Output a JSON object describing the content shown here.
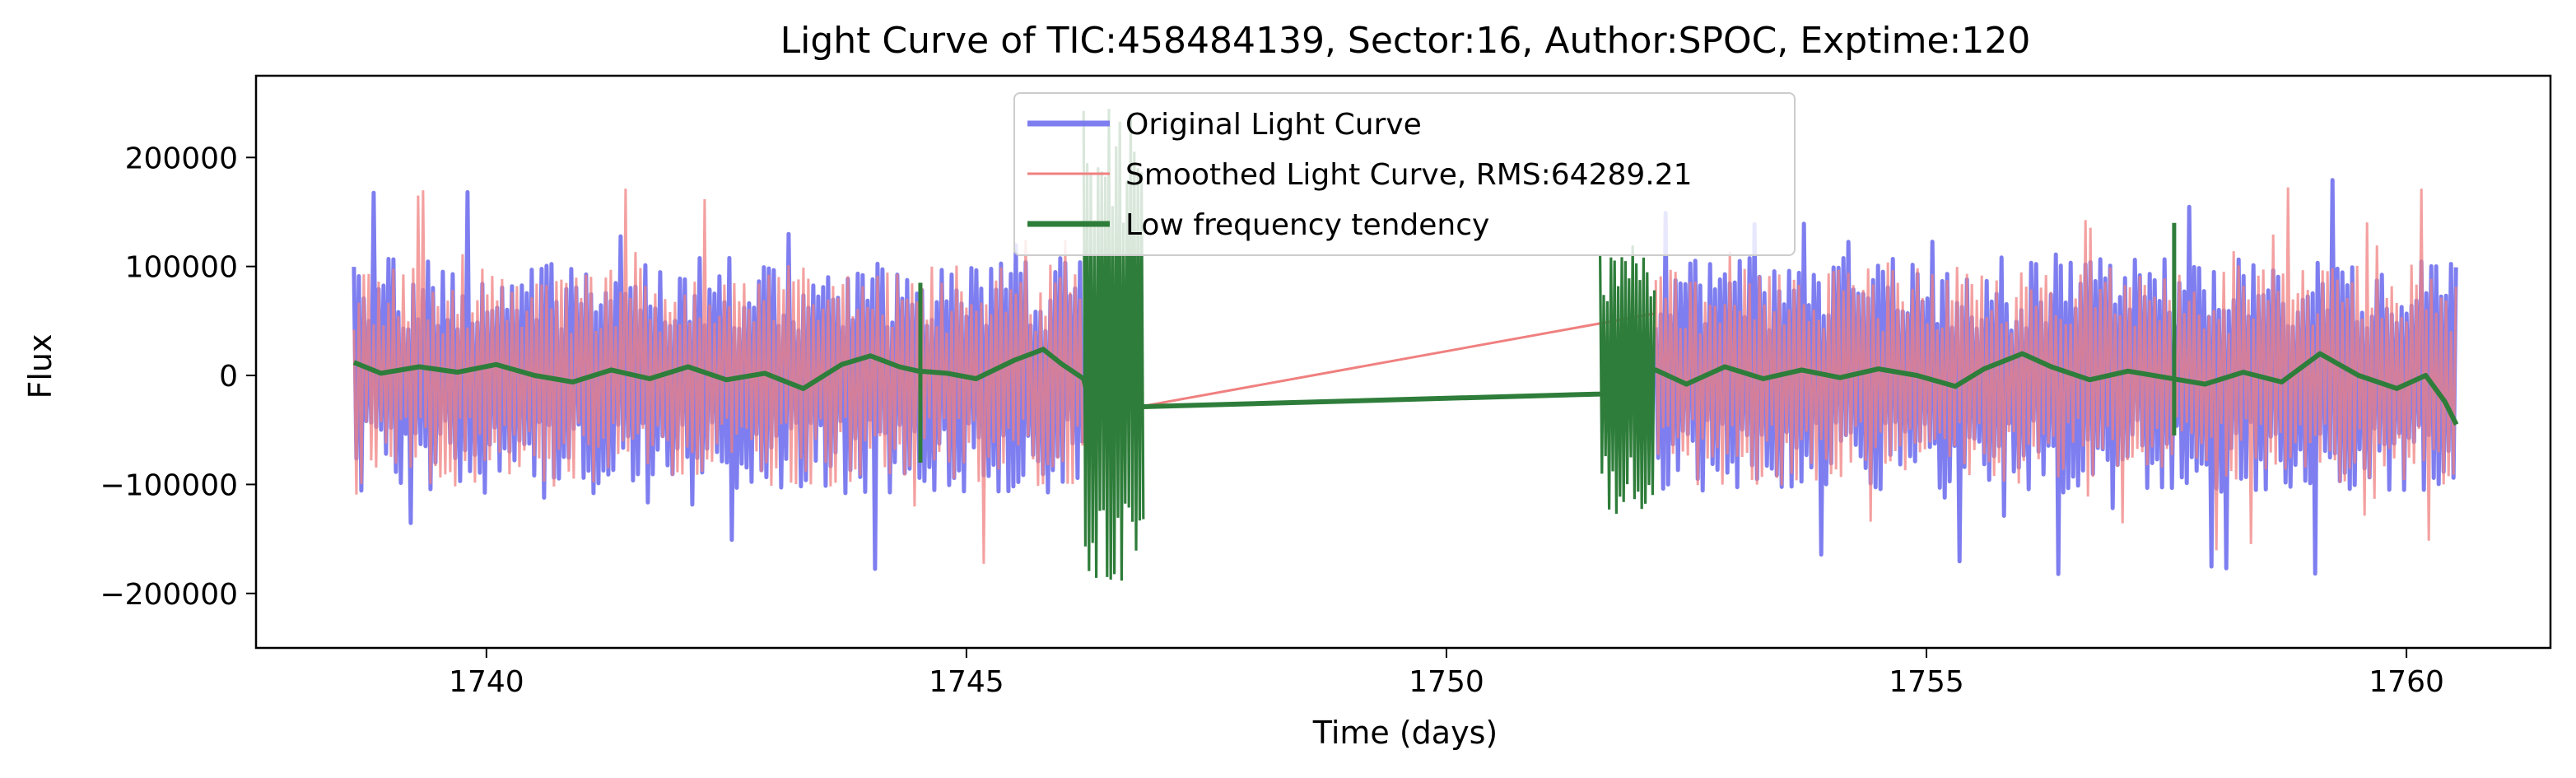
{
  "chart_data": {
    "type": "line",
    "title": "Light Curve of TIC:458484139, Sector:16, Author:SPOC, Exptime:120",
    "xlabel": "Time (days)",
    "ylabel": "Flux",
    "xlim": [
      1737.6,
      1761.5
    ],
    "ylim": [
      -250000,
      275000
    ],
    "xticks": [
      1740,
      1745,
      1750,
      1755,
      1760
    ],
    "xtick_labels": [
      "1740",
      "1745",
      "1750",
      "1755",
      "1760"
    ],
    "yticks": [
      -200000,
      -100000,
      0,
      100000,
      200000
    ],
    "ytick_labels": [
      "−200000",
      "−100000",
      "0",
      "100000",
      "200000"
    ],
    "grid": false,
    "legend_position": "top-center",
    "segments": [
      [
        1738.62,
        1746.22
      ],
      [
        1752.18,
        1760.52
      ]
    ],
    "gap": [
      1746.22,
      1752.18
    ],
    "series": [
      {
        "name": "Original Light Curve",
        "color": "#7070ee",
        "kind": "oscillation",
        "amplitude": 90000,
        "peaks_max": 252000,
        "peaks_min": -228000
      },
      {
        "name": "Smoothed Light Curve, RMS:64289.21",
        "color": "#f08080",
        "kind": "oscillation",
        "amplitude": 85000,
        "bridge": [
          [
            1746.22,
            -38000
          ],
          [
            1752.18,
            57000
          ]
        ]
      },
      {
        "name": "Low frequency tendency",
        "color": "#2e7d3a",
        "kind": "trend",
        "points": [
          [
            1738.62,
            12000
          ],
          [
            1738.9,
            2000
          ],
          [
            1739.3,
            8000
          ],
          [
            1739.7,
            3000
          ],
          [
            1740.1,
            10000
          ],
          [
            1740.5,
            0
          ],
          [
            1740.9,
            -6000
          ],
          [
            1741.3,
            5000
          ],
          [
            1741.7,
            -3000
          ],
          [
            1742.1,
            8000
          ],
          [
            1742.5,
            -4000
          ],
          [
            1742.9,
            2000
          ],
          [
            1743.3,
            -12000
          ],
          [
            1743.7,
            10000
          ],
          [
            1744.0,
            18000
          ],
          [
            1744.3,
            8000
          ],
          [
            1744.5,
            4000
          ],
          [
            1744.8,
            2000
          ],
          [
            1745.1,
            -3000
          ],
          [
            1745.5,
            14000
          ],
          [
            1745.8,
            24000
          ],
          [
            1746.0,
            10000
          ],
          [
            1746.22,
            -3000
          ],
          [
            1746.3,
            -30000
          ],
          [
            1751.6,
            -17000
          ],
          [
            1752.18,
            5000
          ],
          [
            1752.5,
            -8000
          ],
          [
            1752.9,
            8000
          ],
          [
            1753.3,
            -3000
          ],
          [
            1753.7,
            5000
          ],
          [
            1754.1,
            -2000
          ],
          [
            1754.5,
            6000
          ],
          [
            1754.9,
            0
          ],
          [
            1755.3,
            -10000
          ],
          [
            1755.6,
            6000
          ],
          [
            1756.0,
            20000
          ],
          [
            1756.3,
            8000
          ],
          [
            1756.7,
            -4000
          ],
          [
            1757.1,
            4000
          ],
          [
            1757.5,
            -2000
          ],
          [
            1757.9,
            -8000
          ],
          [
            1758.3,
            3000
          ],
          [
            1758.7,
            -6000
          ],
          [
            1759.1,
            20000
          ],
          [
            1759.5,
            0
          ],
          [
            1759.9,
            -12000
          ],
          [
            1760.2,
            0
          ],
          [
            1760.4,
            -24000
          ],
          [
            1760.52,
            -45000
          ]
        ],
        "glitches": [
          {
            "x": 1744.52,
            "y_min": -80000,
            "y_max": 85000
          },
          {
            "x": 1757.58,
            "y_min": -55000,
            "y_max": 140000
          }
        ],
        "bursts": [
          {
            "x_start": 1746.22,
            "x_end": 1746.85,
            "y_min": -200000,
            "y_max": 245000
          },
          {
            "x_start": 1751.6,
            "x_end": 1752.18,
            "y_min": -130000,
            "y_max": 120000
          }
        ]
      }
    ]
  }
}
